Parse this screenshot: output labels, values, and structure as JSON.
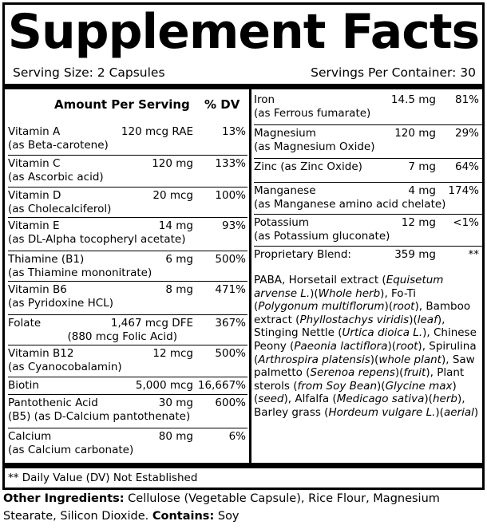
{
  "title": "Supplement Facts",
  "serving_size": "Serving Size: 2 Capsules",
  "servings_per_container": "Servings Per Container: 30",
  "col_amount": "Amount Per Serving",
  "col_dv": "% DV",
  "left_rows": [
    {
      "name": "Vitamin A",
      "sub": "(as Beta-carotene)",
      "amount": "120 mcg RAE",
      "dv": "13%"
    },
    {
      "name": "Vitamin C",
      "sub": "(as Ascorbic acid)",
      "amount": "120 mg",
      "dv": "133%"
    },
    {
      "name": "Vitamin D",
      "sub": "(as Cholecalciferol)",
      "amount": "20 mcg",
      "dv": "100%"
    },
    {
      "name": "Vitamin E",
      "sub": "(as DL-Alpha tocopheryl acetate)",
      "amount": "14 mg",
      "dv": "93%"
    },
    {
      "name": "Thiamine (B1)",
      "sub": "(as Thiamine mononitrate)",
      "amount": "6 mg",
      "dv": "500%"
    },
    {
      "name": "Vitamin B6",
      "sub": "(as Pyridoxine HCL)",
      "amount": "8 mg",
      "dv": "471%"
    },
    {
      "name": "Folate",
      "sub": "(880 mcg Folic Acid)",
      "amount": "1,467 mcg DFE",
      "dv": "367%"
    },
    {
      "name": "Vitamin B12",
      "sub": "(as Cyanocobalamin)",
      "amount": "12 mcg",
      "dv": "500%"
    },
    {
      "name": "Biotin",
      "sub": "",
      "amount": "5,000 mcg",
      "dv": "16,667%"
    },
    {
      "name": "Pantothenic Acid",
      "sub": "(B5) (as D-Calcium pantothenate)",
      "amount": "30 mg",
      "dv": "600%"
    },
    {
      "name": "Calcium",
      "sub": "(as Calcium carbonate)",
      "amount": "80 mg",
      "dv": "6%"
    }
  ],
  "right_rows": [
    {
      "name": "Iron",
      "sub": "(as Ferrous fumarate)",
      "amount": "14.5 mg",
      "dv": "81%"
    },
    {
      "name": "Magnesium",
      "sub": "(as Magnesium Oxide)",
      "amount": "120 mg",
      "dv": "29%"
    },
    {
      "name": "Zinc (as Zinc Oxide)",
      "sub": "",
      "amount": "7 mg",
      "dv": "64%"
    },
    {
      "name": "Manganese",
      "sub": "(as Manganese amino acid chelate)",
      "amount": "4 mg",
      "dv": "174%"
    },
    {
      "name": "Potassium",
      "sub": "(as Potassium gluconate)",
      "amount": "12 mg",
      "dv": "<1%"
    },
    {
      "name": "Proprietary Blend:",
      "sub": "",
      "amount": "359 mg",
      "dv": "**"
    }
  ],
  "blend": {
    "t1": "PABA, Horsetail extract (",
    "i1": "Equisetum arvense L.",
    "t2": ")(",
    "i2": "Whole herb",
    "t3": "), Fo-Ti (",
    "i3": "Polygonum multiflorum",
    "t4": ")(",
    "i4": "root",
    "t5": "), Bamboo extract (",
    "i5": "Phyllostachys viridis",
    "t6": ")(",
    "i6": "leaf",
    "t7": "), Stinging Nettle (",
    "i7": "Urtica dioica L.",
    "t8": "), Chinese Peony (",
    "i8": "Paeonia lactiflora",
    "t9": ")(",
    "i9": "root",
    "t10": "), Spirulina (",
    "i10": "Arthrospira platensis",
    "t11": ")(",
    "i11": "whole plant",
    "t12": "), Saw palmetto (",
    "i12": "Serenoa repens",
    "t13": ")(",
    "i13": "fruit",
    "t14": "), Plant sterols (",
    "i14": "from Soy Bean",
    "t15": ")(",
    "i15": "Glycine max",
    "t16": ")(",
    "i16": "seed",
    "t17": "), Alfalfa (",
    "i17": "Medicago sativa",
    "t18": ")(",
    "i18": "herb",
    "t19": "), Barley grass (",
    "i19": "Hordeum vulgare L.",
    "t20": ")(",
    "i20": "aerial",
    "t21": ")"
  },
  "footnote": "** Daily Value (DV) Not Established",
  "other_label": "Other Ingredients:",
  "other_text": " Cellulose (Vegetable Capsule), Rice Flour, Magnesium Stearate, Silicon Dioxide. ",
  "contains_label": "Contains:",
  "contains_text": " Soy"
}
